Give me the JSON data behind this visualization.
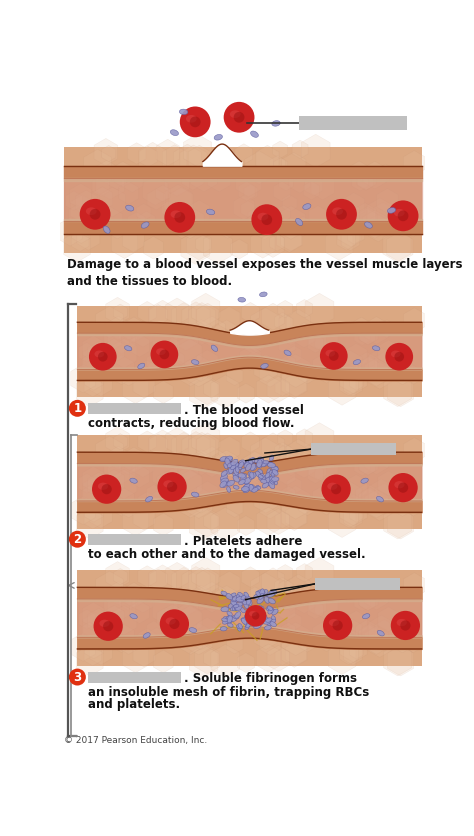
{
  "bg_color": "#ffffff",
  "vessel_wall_outer": "#c8845a",
  "vessel_wall_inner_line": "#d4a080",
  "vessel_lumen_color": "#d4907a",
  "vessel_tissue_color": "#dba882",
  "rbc_color": "#cc2222",
  "rbc_inner_color": "#991111",
  "platelet_color": "#9898c8",
  "platelet_edge": "#6060a0",
  "fibrin_color": "#c8a020",
  "text_color": "#111111",
  "step_circle_color": "#e03010",
  "redacted_color": "#c0c0c0",
  "copyright_color": "#444444",
  "desc_text_0": "Damage to a blood vessel exposes the vessel muscle layers\nand the tissues to blood.",
  "desc_text_1_a": ". The blood vessel",
  "desc_text_1_b": "contracts, reducing blood flow.",
  "desc_text_2_a": ". Platelets adhere",
  "desc_text_2_b": "to each other and to the damaged vessel.",
  "desc_text_3_a": ". Soluble fibrinogen forms",
  "desc_text_3_b": "an insoluble mesh of fibrin, trapping RBCs",
  "desc_text_3_c": "and platelets.",
  "copyright": "© 2017 Pearson Education, Inc.",
  "figure_width": 4.74,
  "figure_height": 8.36,
  "dpi": 100
}
